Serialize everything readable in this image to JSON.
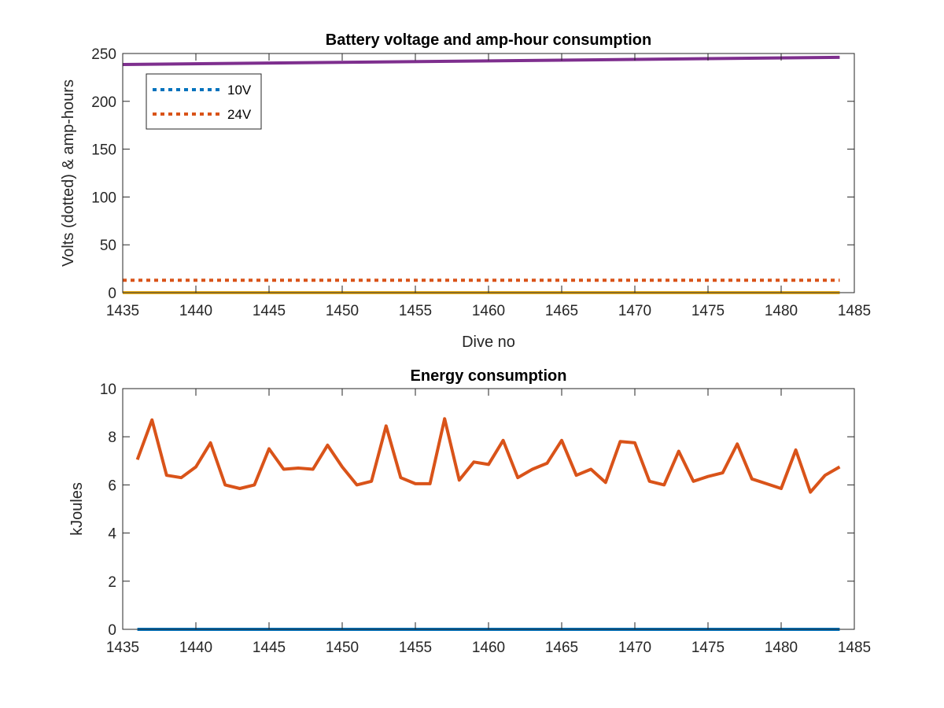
{
  "chart_data": [
    {
      "type": "line",
      "title": "Battery voltage and amp-hour consumption",
      "xlabel": "Dive no",
      "ylabel": "Volts (dotted) & amp-hours",
      "xlim": [
        1435,
        1485
      ],
      "ylim": [
        0,
        250
      ],
      "xticks": [
        1435,
        1440,
        1445,
        1450,
        1455,
        1460,
        1465,
        1470,
        1475,
        1480,
        1485
      ],
      "yticks": [
        0,
        50,
        100,
        150,
        200,
        250
      ],
      "legend_position": "top-left",
      "grid": false,
      "series": [
        {
          "name": "10V",
          "style": "dotted",
          "color": "#0072BD",
          "x": [
            1435,
            1484
          ],
          "y": [
            0,
            0
          ]
        },
        {
          "name": "24V",
          "style": "dotted",
          "color": "#D95319",
          "x": [
            1435,
            1484
          ],
          "y": [
            13,
            13
          ]
        },
        {
          "style": "solid",
          "color": "#EDB120",
          "x": [
            1435,
            1484
          ],
          "y": [
            0,
            0
          ]
        },
        {
          "style": "solid",
          "color": "#7E2F8E",
          "x": [
            1435,
            1484
          ],
          "y": [
            238.5,
            246
          ]
        }
      ]
    },
    {
      "type": "line",
      "title": "Energy consumption",
      "xlabel": "",
      "ylabel": "kJoules",
      "xlim": [
        1435,
        1485
      ],
      "ylim": [
        0,
        10
      ],
      "xticks": [
        1435,
        1440,
        1445,
        1450,
        1455,
        1460,
        1465,
        1470,
        1475,
        1480,
        1485
      ],
      "yticks": [
        0,
        2,
        4,
        6,
        8,
        10
      ],
      "grid": false,
      "series": [
        {
          "style": "solid",
          "color": "#0072BD",
          "x": [
            1436,
            1484
          ],
          "y": [
            0,
            0
          ]
        },
        {
          "style": "solid",
          "color": "#D95319",
          "x": [
            1436,
            1437,
            1438,
            1439,
            1440,
            1441,
            1442,
            1443,
            1444,
            1445,
            1446,
            1447,
            1448,
            1449,
            1450,
            1451,
            1452,
            1453,
            1454,
            1455,
            1456,
            1457,
            1458,
            1459,
            1460,
            1461,
            1462,
            1463,
            1464,
            1465,
            1466,
            1467,
            1468,
            1469,
            1470,
            1471,
            1472,
            1473,
            1474,
            1475,
            1476,
            1477,
            1478,
            1479,
            1480,
            1481,
            1482,
            1483,
            1484
          ],
          "y": [
            7.05,
            8.7,
            6.4,
            6.3,
            6.75,
            7.75,
            6.0,
            5.85,
            6.0,
            7.5,
            6.65,
            6.7,
            6.65,
            7.65,
            6.75,
            6.0,
            6.15,
            8.45,
            6.3,
            6.05,
            6.05,
            8.75,
            6.2,
            6.95,
            6.85,
            7.85,
            6.3,
            6.65,
            6.9,
            7.85,
            6.4,
            6.65,
            6.1,
            7.8,
            7.75,
            6.15,
            6.0,
            7.4,
            6.15,
            6.35,
            6.5,
            7.7,
            6.25,
            6.05,
            5.85,
            7.45,
            5.7,
            6.4,
            6.75
          ]
        }
      ]
    }
  ]
}
